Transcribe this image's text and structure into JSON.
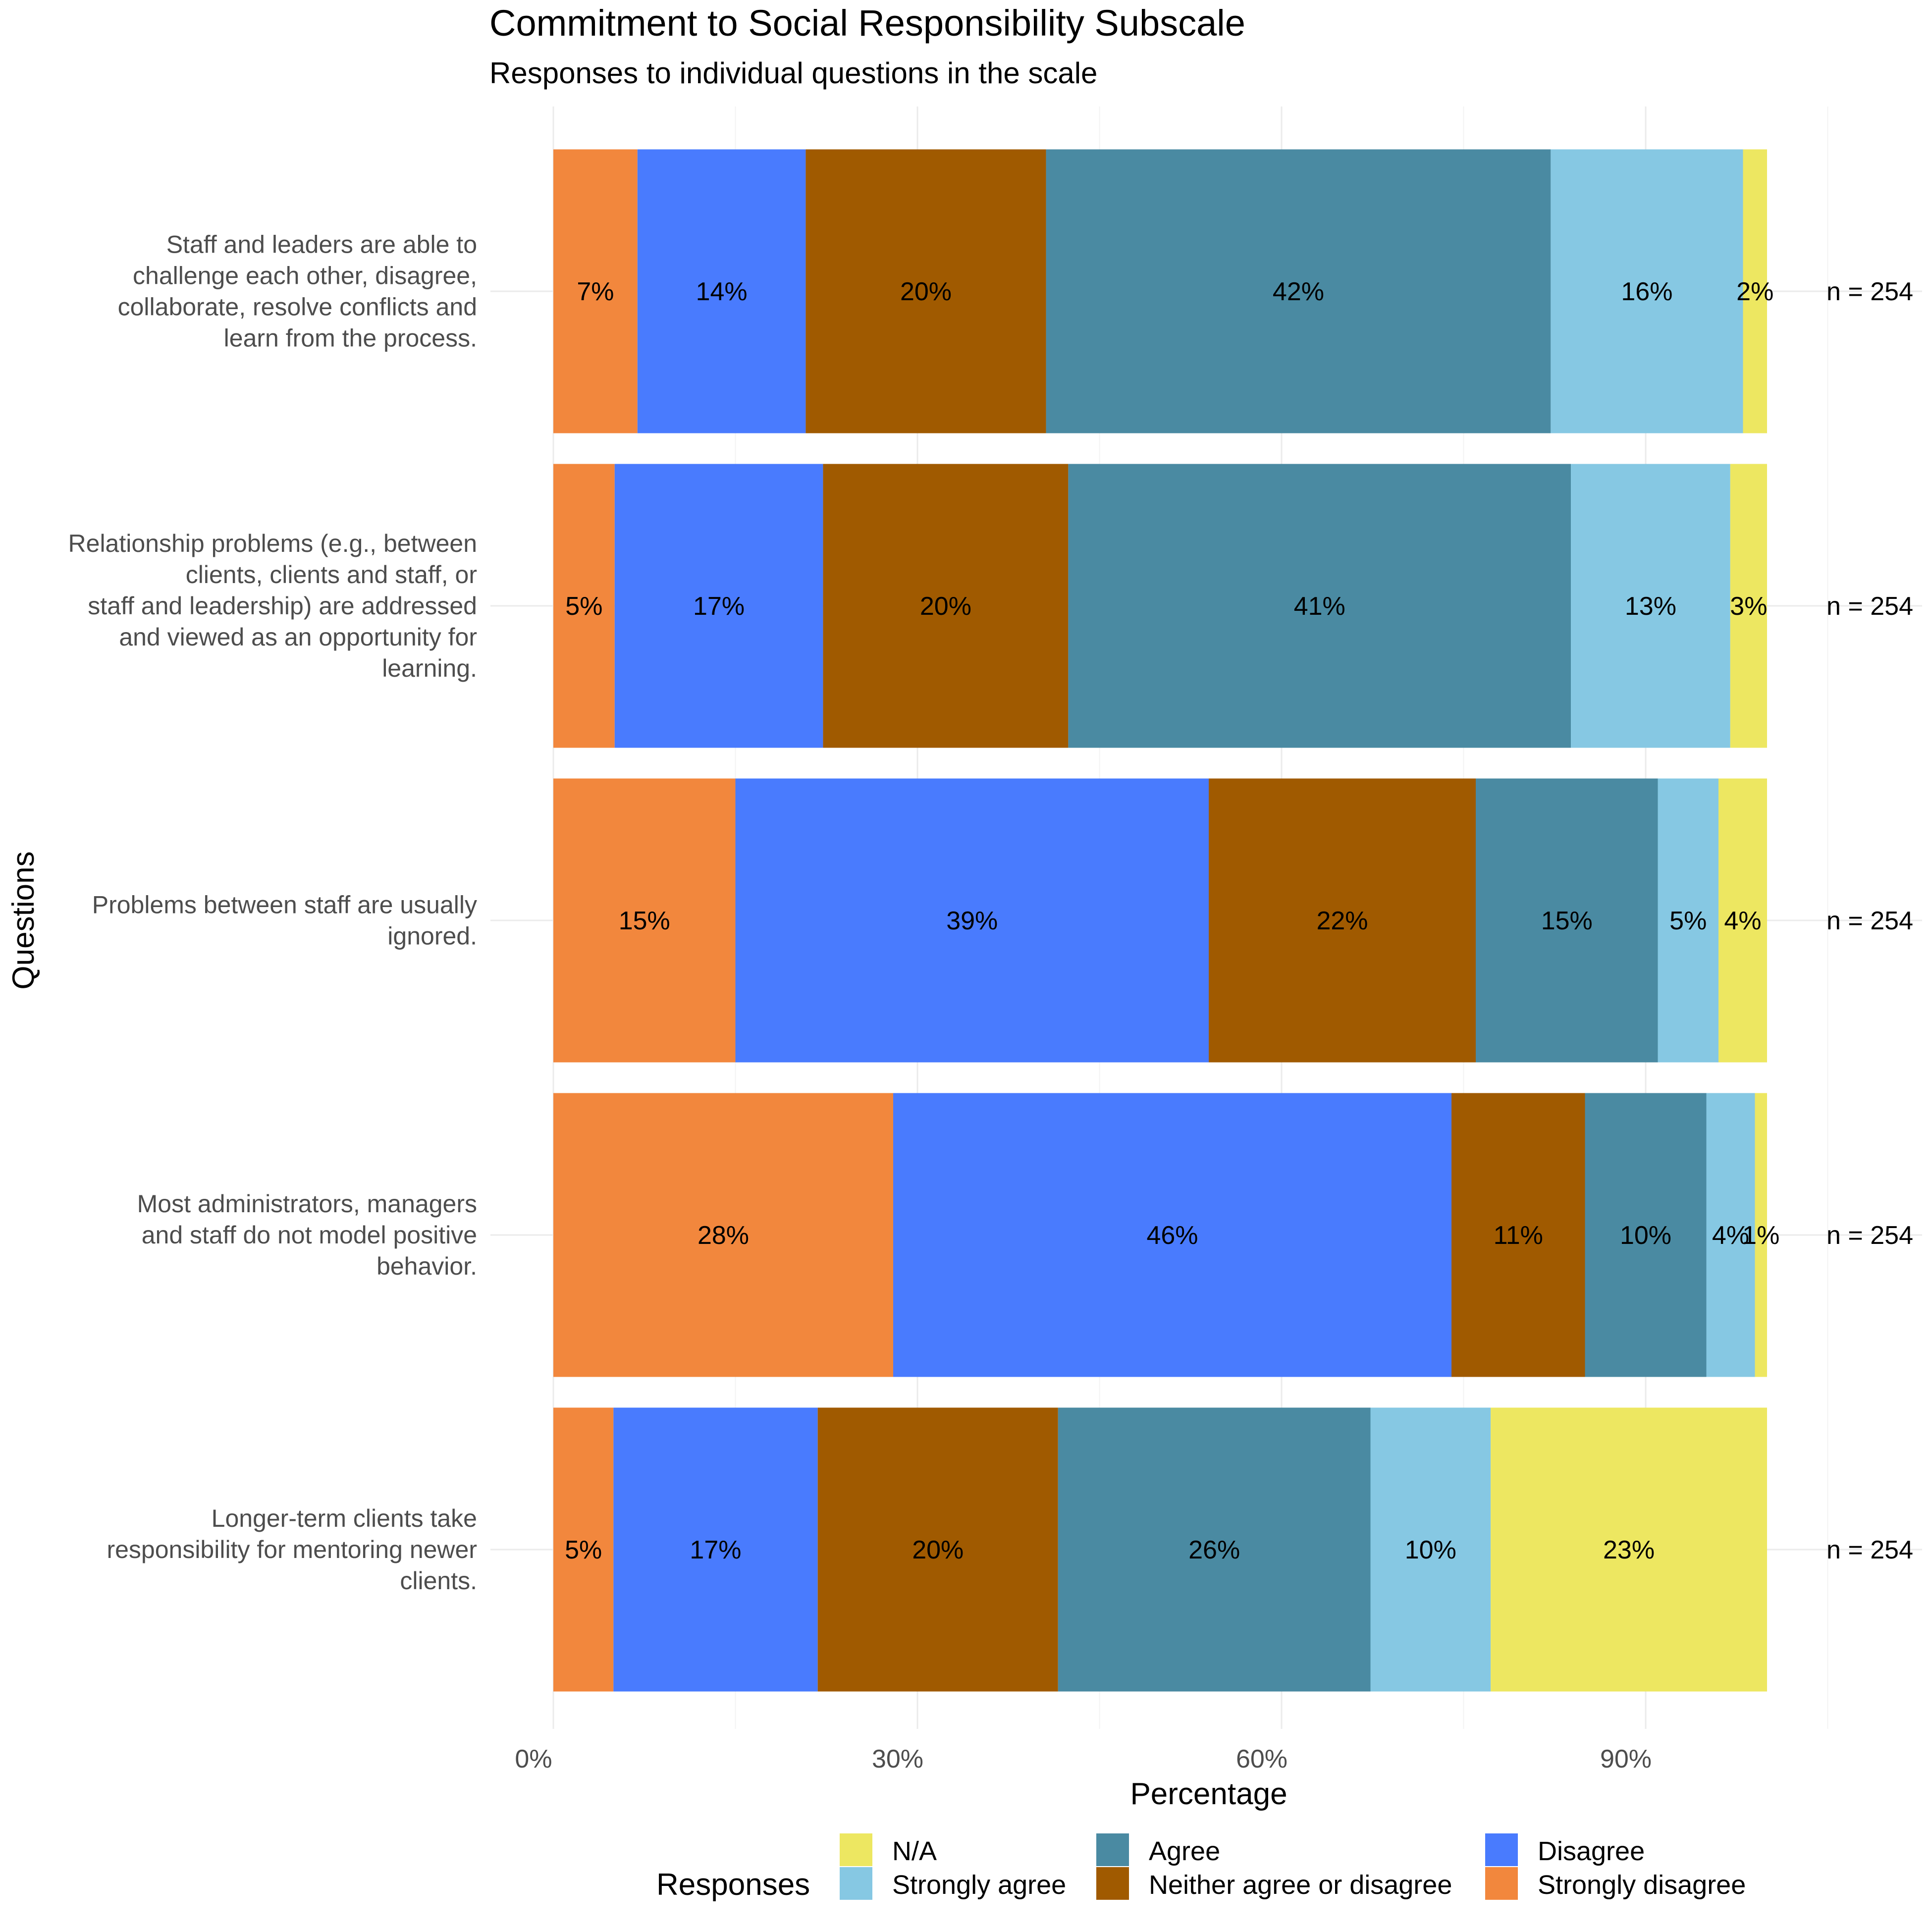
{
  "chart_data": {
    "type": "bar",
    "orientation": "horizontal",
    "stacked": true,
    "title": "Commitment to Social Responsibility Subscale",
    "subtitle": "Responses to individual questions in the scale",
    "xlabel": "Percentage",
    "ylabel": "Questions",
    "xlim": [
      0,
      100
    ],
    "x_ticks": [
      "0%",
      "30%",
      "60%",
      "90%"
    ],
    "x_tick_values": [
      0,
      30,
      60,
      90
    ],
    "grid": true,
    "legend": {
      "title": "Responses",
      "position": "bottom",
      "entries": [
        {
          "name": "N/A",
          "color": "#ede761"
        },
        {
          "name": "Strongly agree",
          "color": "#86c8e3"
        },
        {
          "name": "Agree",
          "color": "#4a8aa2"
        },
        {
          "name": "Neither agree or disagree",
          "color": "#a05a00"
        },
        {
          "name": "Disagree",
          "color": "#497bfe"
        },
        {
          "name": "Strongly disagree",
          "color": "#f2873d"
        }
      ]
    },
    "stack_order": [
      "Strongly disagree",
      "Disagree",
      "Neither agree or disagree",
      "Agree",
      "Strongly agree",
      "N/A"
    ],
    "categories": [
      "Staff and leaders are able to challenge each other, disagree, collaborate, resolve conflicts and learn from the process.",
      "Relationship problems (e.g., between clients, clients and staff, or staff and leadership) are addressed and viewed as an opportunity for learning.",
      "Problems between staff are usually ignored.",
      "Most administrators, managers and staff do not model positive behavior.",
      "Longer-term clients take responsibility for mentoring newer clients."
    ],
    "category_lines": [
      [
        "Staff and leaders are able to",
        "challenge each other, disagree,",
        "collaborate, resolve conflicts and",
        "learn from the process."
      ],
      [
        "Relationship problems (e.g., between",
        "clients, clients and staff, or",
        "staff and leadership) are addressed",
        "and viewed as an opportunity for",
        "learning."
      ],
      [
        "Problems between staff are usually",
        "ignored."
      ],
      [
        "Most administrators, managers",
        "and staff do not model positive",
        "behavior."
      ],
      [
        "Longer-term clients take",
        "responsibility for mentoring newer",
        "clients."
      ]
    ],
    "series": [
      {
        "name": "Strongly disagree",
        "values": [
          7,
          5,
          15,
          28,
          5
        ]
      },
      {
        "name": "Disagree",
        "values": [
          14,
          17,
          39,
          46,
          17
        ]
      },
      {
        "name": "Neither agree or disagree",
        "values": [
          20,
          20,
          22,
          11,
          20
        ]
      },
      {
        "name": "Agree",
        "values": [
          42,
          41,
          15,
          10,
          26
        ]
      },
      {
        "name": "Strongly agree",
        "values": [
          16,
          13,
          5,
          4,
          10
        ]
      },
      {
        "name": "N/A",
        "values": [
          2,
          3,
          4,
          1,
          23
        ]
      }
    ],
    "n_labels": [
      "n = 254",
      "n = 254",
      "n = 254",
      "n = 254",
      "n = 254"
    ]
  }
}
